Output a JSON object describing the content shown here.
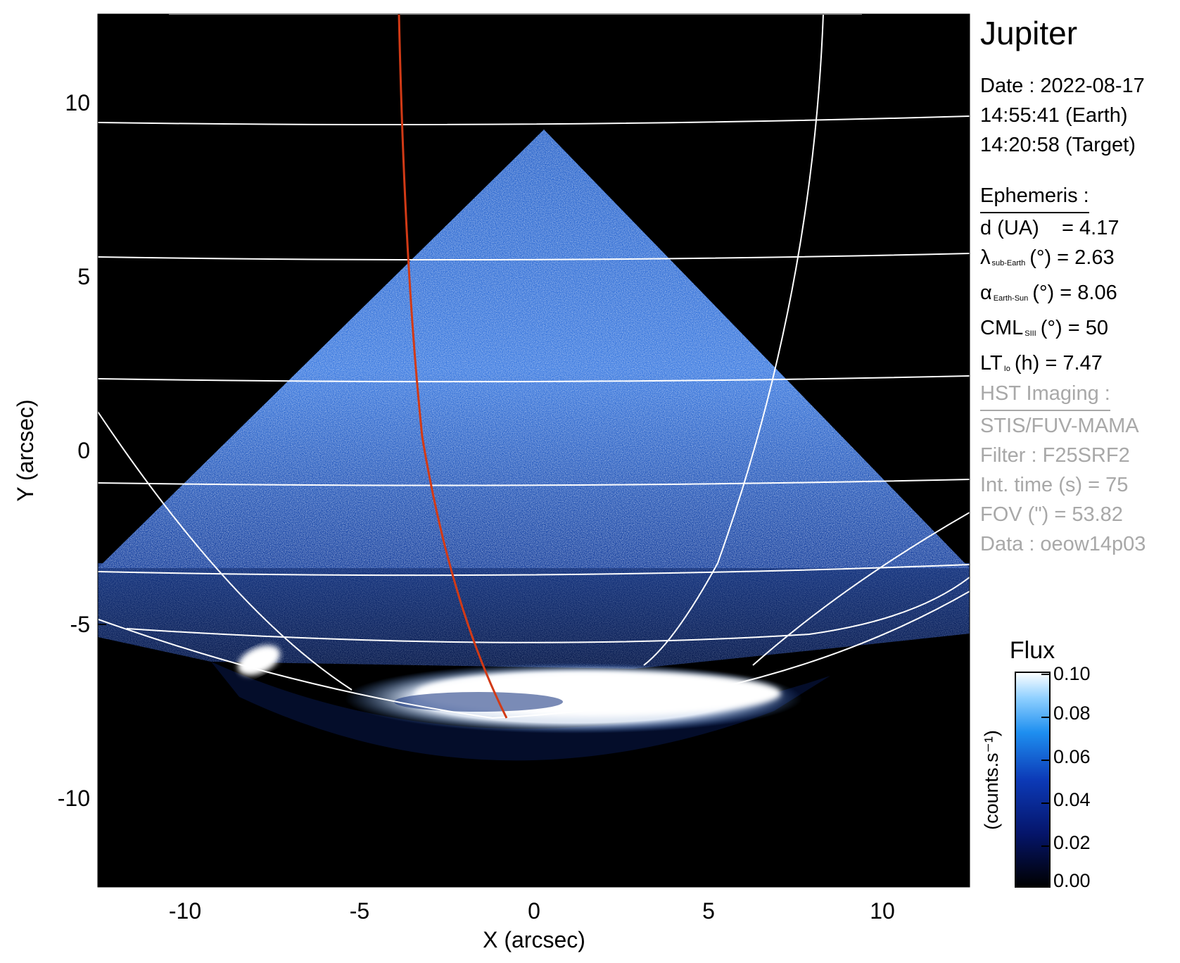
{
  "title": "Jupiter",
  "observation": {
    "date_line": "Date : 2022-08-17",
    "earth_time": "14:55:41 (Earth)",
    "target_time": "14:20:58 (Target)"
  },
  "ephemeris": {
    "header": "Ephemeris :",
    "d_label": "d (UA)",
    "d_value": "= 4.17",
    "lat_symbol": "λ",
    "lat_sub": "sub-Earth",
    "lat_value": "(°) = 2.63",
    "phase_symbol": "α",
    "phase_sub": "Earth-Sun",
    "phase_value": "(°) = 8.06",
    "cml_symbol": "CML",
    "cml_sub": "SIII",
    "cml_value": "(°) = 50",
    "lt_symbol": "LT",
    "lt_sub": "Io",
    "lt_value": "(h) = 7.47"
  },
  "hst": {
    "header": "HST Imaging :",
    "instrument": "STIS/FUV-MAMA",
    "filter": "Filter : F25SRF2",
    "int_time": "Int. time (s) = 75",
    "fov": "FOV (\") = 53.82",
    "data": "Data : oeow14p03"
  },
  "axes": {
    "xlabel": "X (arcsec)",
    "ylabel": "Y (arcsec)",
    "x_ticks": [
      "-10",
      "-5",
      "0",
      "5",
      "10"
    ],
    "y_ticks": [
      "10",
      "5",
      "0",
      "-5",
      "-10"
    ]
  },
  "colorbar": {
    "title": "Flux",
    "unit_label": "(counts.s⁻¹)",
    "ticks": [
      "0.10",
      "0.08",
      "0.06",
      "0.04",
      "0.02",
      "0.00"
    ]
  },
  "colors": {
    "background": "#000000",
    "grid": "#ffffff",
    "io_footpath": "#d23a16",
    "emission_blue": "#1f5fc8",
    "emission_white": "#f4f8ff",
    "text_gray": "#a8a8a8"
  }
}
